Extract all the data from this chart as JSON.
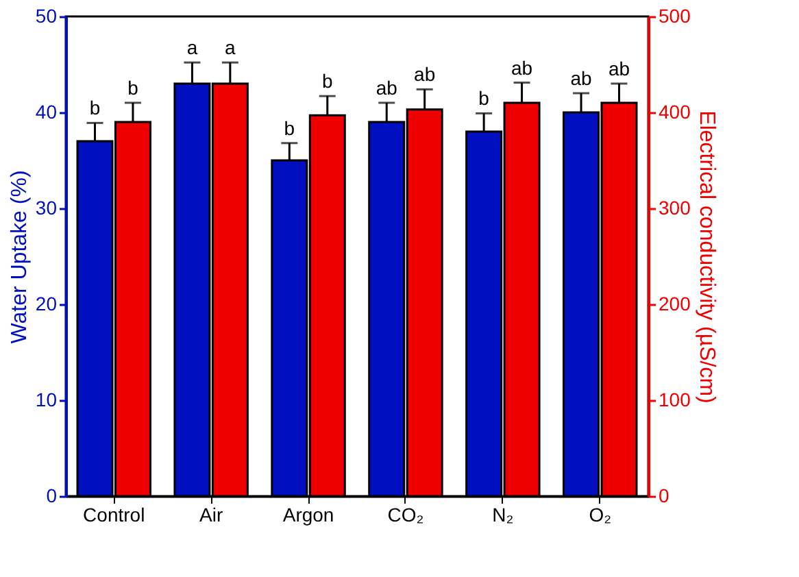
{
  "chart_data": {
    "type": "bar",
    "xlabel": null,
    "ylabel": "Water Uptake (%)",
    "y2label": "Electrical conductivity (µS/cm)",
    "categories": [
      "Control",
      "Air",
      "Argon",
      "CO₂",
      "N₂",
      "O₂"
    ],
    "series": [
      {
        "color": "#0010c0",
        "values": [
          37,
          43,
          35,
          39,
          38,
          40
        ],
        "errors": [
          [
            37,
            38.9
          ],
          [
            43,
            45.2
          ],
          [
            35,
            36.8
          ],
          [
            39,
            41.0
          ],
          [
            38,
            39.9
          ],
          [
            40,
            42.0
          ]
        ],
        "value_labels": [
          "b",
          "a",
          "b",
          "ab",
          "b",
          "ab"
        ]
      },
      {
        "color": "#ee0000",
        "axis": "y2",
        "values": [
          390,
          430,
          397,
          403,
          410,
          410
        ],
        "errors": [
          [
            390,
            410
          ],
          [
            430,
            452
          ],
          [
            397,
            417
          ],
          [
            403,
            424
          ],
          [
            410,
            431
          ],
          [
            410,
            430
          ]
        ],
        "value_labels": [
          "b",
          "a",
          "b",
          "ab",
          "ab",
          "ab"
        ]
      }
    ],
    "ylim": [
      0,
      50
    ],
    "yticks": [
      0,
      10,
      20,
      30,
      40,
      50
    ],
    "y2lim": [
      0,
      500
    ],
    "y2ticks": [
      0,
      100,
      200,
      300,
      400,
      500
    ],
    "grid": false
  }
}
